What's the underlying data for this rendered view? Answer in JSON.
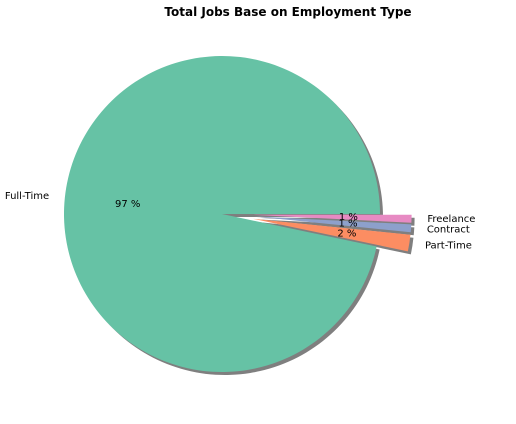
{
  "chart_data": {
    "type": "pie",
    "title": "Total Jobs Base on Employment Type",
    "slices": [
      {
        "label": "Full-Time",
        "pct_label": "97 %",
        "value": 96.7,
        "color": "#66c2a5",
        "explode": 0
      },
      {
        "label": "Part-Time",
        "pct_label": "2 %",
        "value": 1.7,
        "color": "#fc8d62",
        "explode": 0.2
      },
      {
        "label": "Contract",
        "pct_label": "1 %",
        "value": 0.8,
        "color": "#8da0cb",
        "explode": 0.2
      },
      {
        "label": "Freelance",
        "pct_label": "1 %",
        "value": 0.8,
        "color": "#e78ac3",
        "explode": 0.2
      }
    ],
    "shadow": true
  }
}
